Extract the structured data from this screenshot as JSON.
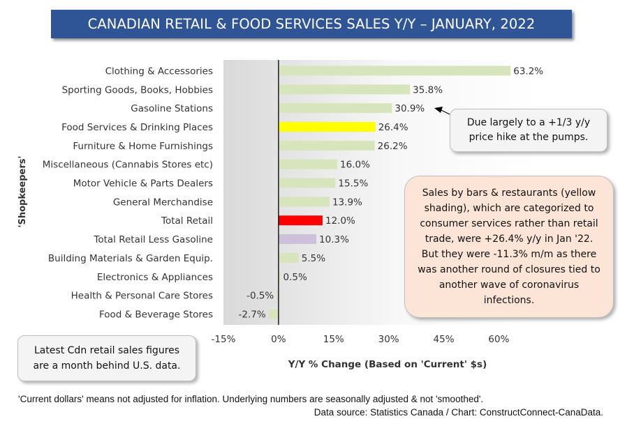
{
  "title": "CANADIAN RETAIL & FOOD SERVICES SALES Y/Y – JANUARY, 2022",
  "chart_data": {
    "type": "bar",
    "orientation": "horizontal",
    "categories": [
      "Clothing & Accessories",
      "Sporting Goods, Books, Hobbies",
      "Gasoline Stations",
      "Food Services & Drinking Places",
      "Furniture & Home Furnishings",
      "Miscellaneous (Cannabis Stores etc)",
      "Motor Vehicle & Parts Dealers",
      "General Merchandise",
      "Total Retail",
      "Total Retail Less Gasoline",
      "Building Materials & Garden Equip.",
      "Electronics & Appliances",
      "Health & Personal Care Stores",
      "Food & Beverage Stores"
    ],
    "values": [
      63.2,
      35.8,
      30.9,
      26.4,
      26.2,
      16.0,
      15.5,
      13.9,
      12.0,
      10.3,
      5.5,
      0.5,
      -0.5,
      -2.7
    ],
    "value_labels": [
      "63.2%",
      "35.8%",
      "30.9%",
      "26.4%",
      "26.2%",
      "16.0%",
      "15.5%",
      "13.9%",
      "12.0%",
      "10.3%",
      "5.5%",
      "0.5%",
      "-0.5%",
      "-2.7%"
    ],
    "bar_colors": [
      "#d8e4bc",
      "#d8e4bc",
      "#d8e4bc",
      "#ffff00",
      "#d8e4bc",
      "#d8e4bc",
      "#d8e4bc",
      "#d8e4bc",
      "#ff0000",
      "#ccc0da",
      "#d8e4bc",
      "#d8e4bc",
      "#d8e4bc",
      "#d8e4bc"
    ],
    "xlim": [
      -15,
      70
    ],
    "xticks": [
      -15,
      0,
      15,
      30,
      45,
      60
    ],
    "xtick_labels": [
      "-15%",
      "0%",
      "15%",
      "30%",
      "45%",
      "60%"
    ],
    "xlabel": "Y/Y % Change (Based  on 'Current' $s)",
    "ylabel": "'Shopkeepers'",
    "grid": false,
    "legend": "none"
  },
  "callouts": {
    "pumps": "Due largely to a +1/3 y/y price hike at the pumps.",
    "restaurants": "Sales by bars & restaurants (yellow shading), which are categorized to consumer services rather than retail trade, were +26.4% y/y in Jan '22. But they were -11.3% m/m as there was another round of closures tied to another wave of coronavirus infections.",
    "lag": "Latest Cdn retail sales figures are a month behind U.S. data."
  },
  "footnote": "'Current dollars' means not adjusted for inflation. Underlying numbers are seasonally adjusted & not 'smoothed'.",
  "source": "Data source: Statistics Canada / Chart: ConstructConnect-CanaData.",
  "colors": {
    "title_bg": "#2f5597",
    "bar_default": "#d8e4bc",
    "bar_food_services": "#ffff00",
    "bar_total_retail": "#ff0000",
    "bar_total_less_gas": "#ccc0da"
  }
}
